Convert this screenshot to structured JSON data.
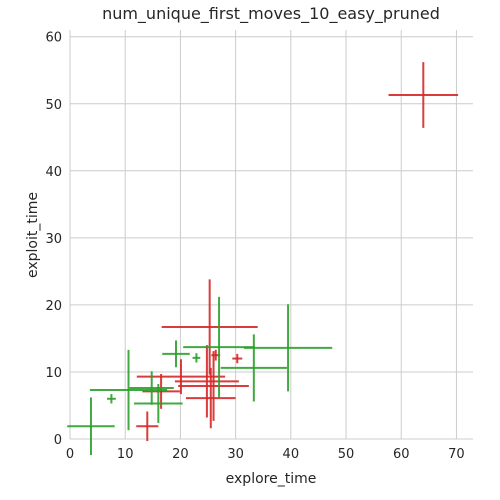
{
  "chart_data": {
    "type": "scatter",
    "title": "num_unique_first_moves_10_easy_pruned",
    "xlabel": "explore_time",
    "ylabel": "exploit_time",
    "xlim": [
      0,
      73
    ],
    "ylim": [
      0,
      61
    ],
    "xticks": [
      0,
      10,
      20,
      30,
      40,
      50,
      60,
      70
    ],
    "yticks": [
      0,
      10,
      20,
      30,
      40,
      50,
      60
    ],
    "grid": true,
    "legend": "none",
    "marks": "crosshair error bars (x ± xerr, y ± yerr)",
    "series": [
      {
        "color": "#d62728",
        "points": [
          {
            "x": 64.0,
            "y": 51.3,
            "xerr": 6.3,
            "yerr": 4.9
          },
          {
            "x": 25.3,
            "y": 16.7,
            "xerr": 8.7,
            "yerr": 7.1
          },
          {
            "x": 24.8,
            "y": 8.6,
            "xerr": 5.8,
            "yerr": 5.4
          },
          {
            "x": 20.1,
            "y": 9.3,
            "xerr": 8.0,
            "yerr": 2.6
          },
          {
            "x": 26.0,
            "y": 7.9,
            "xerr": 6.4,
            "yerr": 5.2
          },
          {
            "x": 25.5,
            "y": 6.1,
            "xerr": 4.5,
            "yerr": 4.5
          },
          {
            "x": 16.5,
            "y": 7.1,
            "xerr": 3.4,
            "yerr": 2.6
          },
          {
            "x": 14.0,
            "y": 1.9,
            "xerr": 2.0,
            "yerr": 2.2
          },
          {
            "x": 26.4,
            "y": 12.5,
            "xerr": 0.8,
            "yerr": 0.8
          },
          {
            "x": 30.3,
            "y": 12.0,
            "xerr": 0.9,
            "yerr": 0.7
          }
        ]
      },
      {
        "color": "#2ca02c",
        "points": [
          {
            "x": 3.8,
            "y": 1.9,
            "xerr": 4.3,
            "yerr": 4.3
          },
          {
            "x": 10.6,
            "y": 7.3,
            "xerr": 7.0,
            "yerr": 6.0
          },
          {
            "x": 14.8,
            "y": 7.6,
            "xerr": 4.0,
            "yerr": 2.5
          },
          {
            "x": 16.0,
            "y": 5.3,
            "xerr": 4.4,
            "yerr": 2.9
          },
          {
            "x": 19.2,
            "y": 12.7,
            "xerr": 2.5,
            "yerr": 2.0
          },
          {
            "x": 27.0,
            "y": 13.7,
            "xerr": 6.5,
            "yerr": 7.5
          },
          {
            "x": 33.3,
            "y": 10.6,
            "xerr": 6.0,
            "yerr": 5.0
          },
          {
            "x": 39.5,
            "y": 13.6,
            "xerr": 8.0,
            "yerr": 6.5
          },
          {
            "x": 7.5,
            "y": 6.0,
            "xerr": 0.8,
            "yerr": 0.7
          },
          {
            "x": 22.9,
            "y": 12.1,
            "xerr": 0.7,
            "yerr": 0.7
          }
        ]
      }
    ]
  }
}
